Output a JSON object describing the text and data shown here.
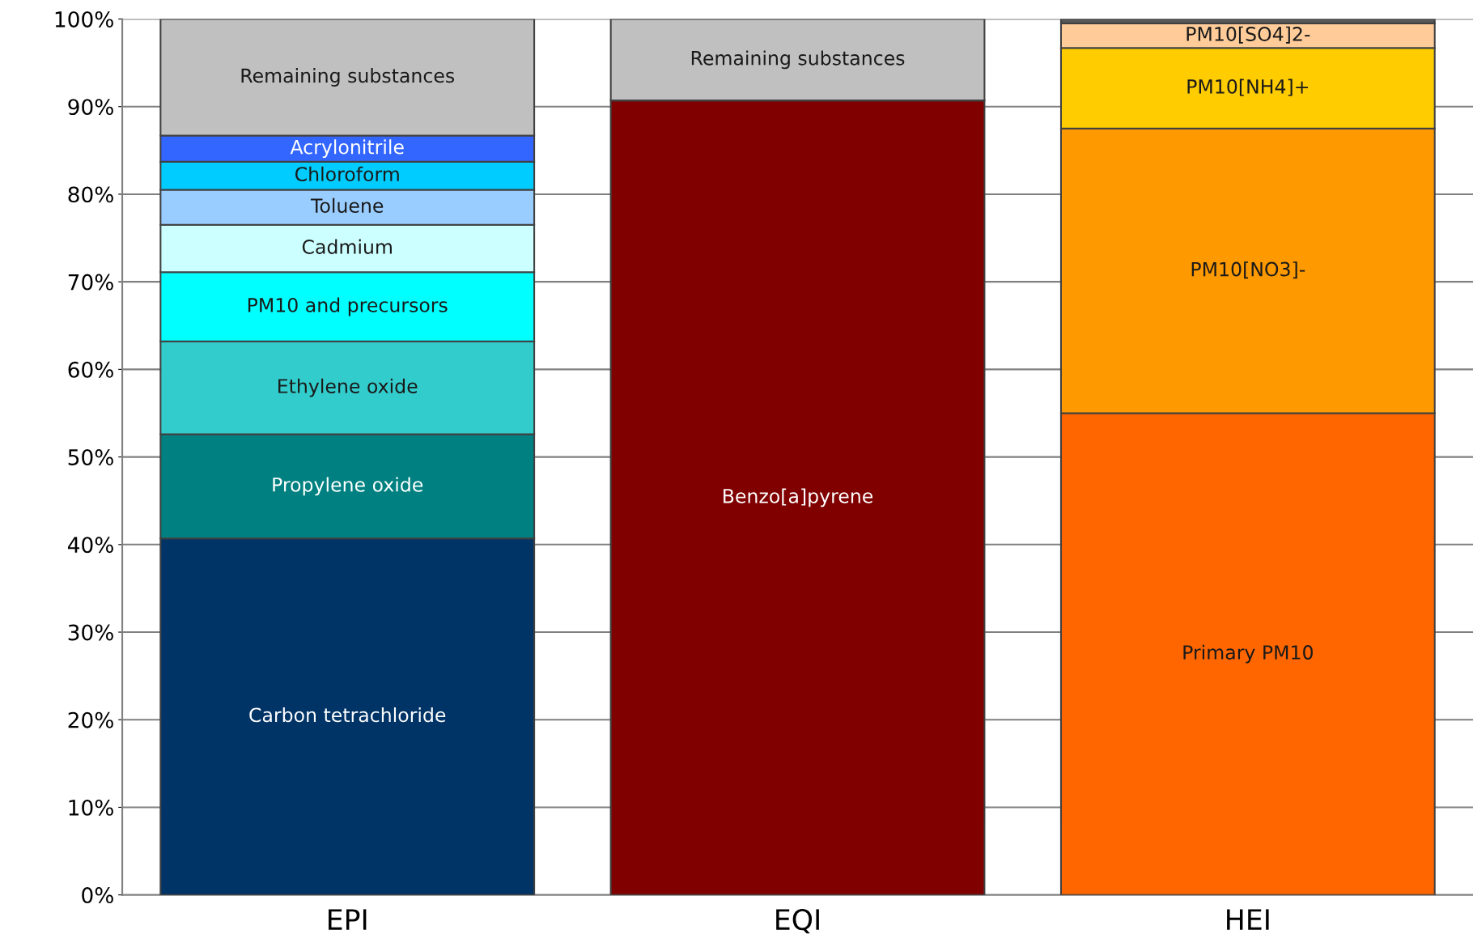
{
  "chart_data": {
    "type": "bar",
    "stacked": true,
    "categories": [
      "EPI",
      "EQI",
      "HEI"
    ],
    "series": [
      {
        "name": "Carbon tetrachloride",
        "color": "#003366",
        "values": [
          40.7,
          null,
          null
        ]
      },
      {
        "name": "Propylene oxide",
        "color": "#008080",
        "values": [
          11.9,
          null,
          null
        ]
      },
      {
        "name": "Ethylene oxide",
        "color": "#33cccc",
        "values": [
          10.6,
          null,
          null
        ]
      },
      {
        "name": "PM10 and precursors",
        "color": "#00ffff",
        "values": [
          7.9,
          null,
          null
        ]
      },
      {
        "name": "Cadmium",
        "color": "#ccffff",
        "values": [
          5.4,
          null,
          null
        ]
      },
      {
        "name": "Toluene",
        "color": "#99ccff",
        "values": [
          4.0,
          null,
          null
        ]
      },
      {
        "name": "Chloroform",
        "color": "#00ccff",
        "values": [
          3.2,
          null,
          null
        ]
      },
      {
        "name": "Acrylonitrile",
        "color": "#3366ff",
        "values": [
          3.0,
          null,
          null
        ]
      },
      {
        "name": "Remaining substances",
        "color": "#c0c0c0",
        "values": [
          13.3,
          null,
          null
        ]
      },
      {
        "name": "Benzo[a]pyrene",
        "color": "#800000",
        "values": [
          null,
          90.7,
          null
        ]
      },
      {
        "name": "Remaining substances",
        "color": "#c0c0c0",
        "values": [
          null,
          9.3,
          null
        ]
      },
      {
        "name": "Primary PM10",
        "color": "#ff6600",
        "values": [
          null,
          null,
          55.0
        ]
      },
      {
        "name": "PM10[NO3]-",
        "color": "#ff9900",
        "values": [
          null,
          null,
          32.5
        ]
      },
      {
        "name": "PM10[NH4]+",
        "color": "#ffcc00",
        "values": [
          null,
          null,
          9.2
        ]
      },
      {
        "name": "PM10[SO4]2-",
        "color": "#ffcc99",
        "values": [
          null,
          null,
          2.8
        ]
      },
      {
        "color": "#595959",
        "values": [
          null,
          null,
          0.5
        ]
      }
    ],
    "ylim": [
      0,
      100
    ],
    "yticks": [
      {
        "value": 0,
        "label": "0%"
      },
      {
        "value": 10,
        "label": "10%"
      },
      {
        "value": 20,
        "label": "20%"
      },
      {
        "value": 30,
        "label": "30%"
      },
      {
        "value": 40,
        "label": "40%"
      },
      {
        "value": 50,
        "label": "50%"
      },
      {
        "value": 60,
        "label": "60%"
      },
      {
        "value": 70,
        "label": "70%"
      },
      {
        "value": 80,
        "label": "80%"
      },
      {
        "value": 90,
        "label": "90%"
      },
      {
        "value": 100,
        "label": "100%"
      }
    ],
    "grid": "y",
    "legend": false
  }
}
